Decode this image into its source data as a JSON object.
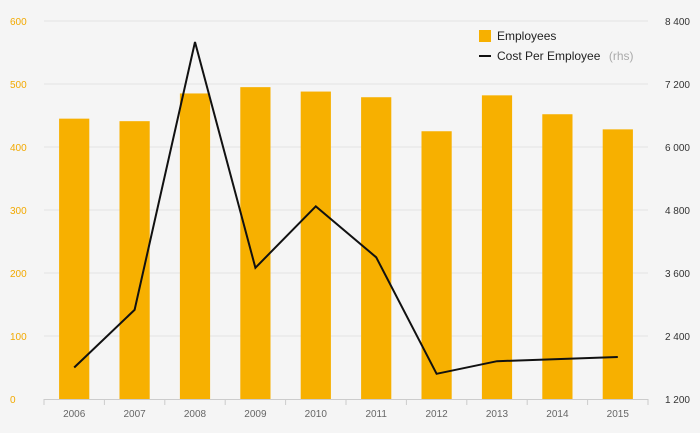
{
  "chart_data": {
    "type": "bar",
    "categories": [
      "2006",
      "2007",
      "2008",
      "2009",
      "2010",
      "2011",
      "2012",
      "2013",
      "2014",
      "2015"
    ],
    "series": [
      {
        "name": "Employees",
        "type": "bar",
        "axis": "left",
        "color": "#f7b000",
        "values": [
          445,
          441,
          485,
          495,
          488,
          479,
          425,
          482,
          452,
          428
        ]
      },
      {
        "name": "Cost Per Employee",
        "type": "line",
        "axis": "right",
        "color": "#111111",
        "values": [
          1800,
          2900,
          8000,
          3700,
          4870,
          3900,
          1680,
          1920,
          1960,
          2000
        ]
      }
    ],
    "legend": {
      "position": "top-right",
      "items": [
        {
          "label": "Employees",
          "suffix": ""
        },
        {
          "label": "Cost Per Employee",
          "suffix": "(rhs)"
        }
      ]
    },
    "left_axis": {
      "ylim": [
        0,
        600
      ],
      "ticks": [
        0,
        100,
        200,
        300,
        400,
        500,
        600
      ],
      "tick_labels": [
        "0",
        "100",
        "200",
        "300",
        "400",
        "500",
        "600"
      ],
      "color": "#f2a900"
    },
    "right_axis": {
      "ylim": [
        1200,
        8400
      ],
      "ticks": [
        1200,
        2400,
        3600,
        4800,
        6000,
        7200,
        8400
      ],
      "tick_labels": [
        "1 200",
        "2 400",
        "3 600",
        "4 800",
        "6 000",
        "7 200",
        "8 400"
      ]
    },
    "grid": true,
    "title": "",
    "xlabel": "",
    "ylabel": ""
  }
}
